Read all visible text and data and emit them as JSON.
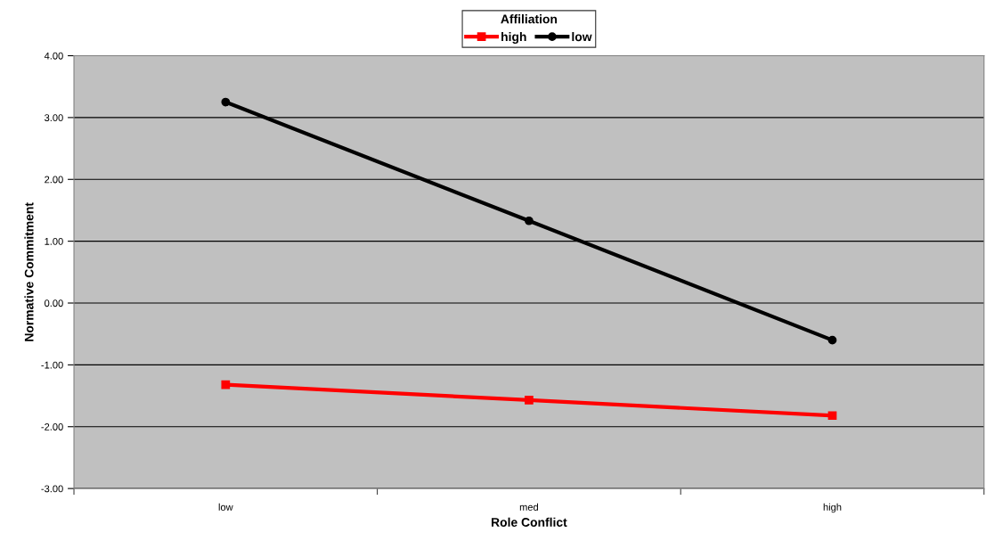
{
  "chart_data": {
    "type": "line",
    "xlabel": "Role Conflict",
    "ylabel": "Normative Commitment",
    "legend_title": "Affiliation",
    "categories": [
      "low",
      "med",
      "high"
    ],
    "series": [
      {
        "name": "high",
        "color": "#ff0000",
        "marker": "square",
        "values": [
          -1.32,
          -1.57,
          -1.82
        ]
      },
      {
        "name": "low",
        "color": "#000000",
        "marker": "circle",
        "values": [
          3.25,
          1.33,
          -0.6
        ]
      }
    ],
    "ylim": [
      -3,
      4
    ],
    "yticks": [
      {
        "value": -3,
        "label": "-3.00"
      },
      {
        "value": -2,
        "label": "-2.00"
      },
      {
        "value": -1,
        "label": "-1.00"
      },
      {
        "value": 0,
        "label": "0.00"
      },
      {
        "value": 1,
        "label": "1.00"
      },
      {
        "value": 2,
        "label": "2.00"
      },
      {
        "value": 3,
        "label": "3.00"
      },
      {
        "value": 4,
        "label": "4.00"
      }
    ],
    "grid": "y",
    "legend": "top",
    "line_style": "solid"
  }
}
